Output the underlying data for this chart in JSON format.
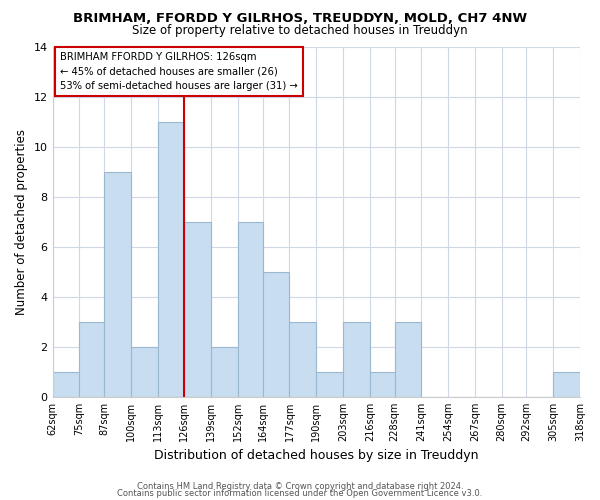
{
  "title": "BRIMHAM, FFORDD Y GILRHOS, TREUDDYN, MOLD, CH7 4NW",
  "subtitle": "Size of property relative to detached houses in Treuddyn",
  "xlabel": "Distribution of detached houses by size in Treuddyn",
  "ylabel": "Number of detached properties",
  "bar_color": "#c8ddf0",
  "bar_edge_color": "#9ab8d0",
  "highlight_line_color": "#cc0000",
  "bins": [
    62,
    75,
    87,
    100,
    113,
    126,
    139,
    152,
    164,
    177,
    190,
    203,
    216,
    228,
    241,
    254,
    267,
    280,
    292,
    305,
    318
  ],
  "counts": [
    1,
    3,
    9,
    2,
    11,
    7,
    2,
    7,
    5,
    3,
    1,
    3,
    1,
    3,
    0,
    0,
    0,
    0,
    0,
    1
  ],
  "tick_labels": [
    "62sqm",
    "75sqm",
    "87sqm",
    "100sqm",
    "113sqm",
    "126sqm",
    "139sqm",
    "152sqm",
    "164sqm",
    "177sqm",
    "190sqm",
    "203sqm",
    "216sqm",
    "228sqm",
    "241sqm",
    "254sqm",
    "267sqm",
    "280sqm",
    "292sqm",
    "305sqm",
    "318sqm"
  ],
  "ylim": [
    0,
    14
  ],
  "yticks": [
    0,
    2,
    4,
    6,
    8,
    10,
    12,
    14
  ],
  "highlight_bin_edge": 126,
  "annotation_title": "BRIMHAM FFORDD Y GILRHOS: 126sqm",
  "annotation_line1": "← 45% of detached houses are smaller (26)",
  "annotation_line2": "53% of semi-detached houses are larger (31) →",
  "footer1": "Contains HM Land Registry data © Crown copyright and database right 2024.",
  "footer2": "Contains public sector information licensed under the Open Government Licence v3.0.",
  "background_color": "#ffffff",
  "grid_color": "#d0d8e8"
}
